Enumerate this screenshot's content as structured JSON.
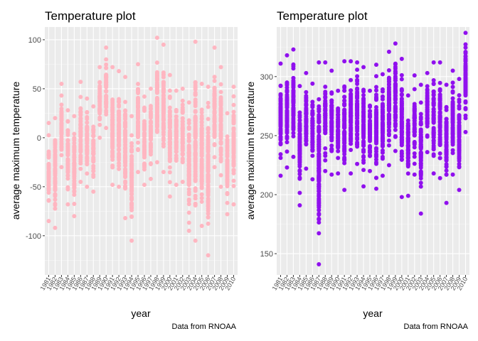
{
  "chart_data": [
    {
      "type": "scatter",
      "title": "Temperature plot",
      "xlabel": "year",
      "ylabel": "average maximum temperature",
      "caption": "Data from RNOAA",
      "color": "#FFB6C1",
      "panel_background": "#EBEBEB",
      "grid": true,
      "xlim": [
        1981,
        2010
      ],
      "ylim": [
        -140,
        113
      ],
      "yticks": [
        -100,
        -50,
        0,
        50,
        100
      ],
      "years": [
        1981,
        1982,
        1983,
        1984,
        1985,
        1986,
        1987,
        1988,
        1989,
        1990,
        1991,
        1992,
        1993,
        1994,
        1995,
        1996,
        1997,
        1998,
        1999,
        2000,
        2001,
        2002,
        2003,
        2004,
        2005,
        2006,
        2007,
        2008,
        2009,
        2010
      ],
      "ranges": [
        [
          -85,
          15
        ],
        [
          -92,
          20
        ],
        [
          -30,
          55
        ],
        [
          -68,
          28
        ],
        [
          -80,
          22
        ],
        [
          -45,
          57
        ],
        [
          -50,
          40
        ],
        [
          -55,
          32
        ],
        [
          0,
          72
        ],
        [
          10,
          92
        ],
        [
          -48,
          72
        ],
        [
          -50,
          68
        ],
        [
          -82,
          62
        ],
        [
          -105,
          22
        ],
        [
          -35,
          75
        ],
        [
          -48,
          42
        ],
        [
          -42,
          50
        ],
        [
          -25,
          102
        ],
        [
          -35,
          95
        ],
        [
          -60,
          64
        ],
        [
          -48,
          48
        ],
        [
          -45,
          50
        ],
        [
          -95,
          36
        ],
        [
          -105,
          98
        ],
        [
          -90,
          55
        ],
        [
          -120,
          52
        ],
        [
          -30,
          92
        ],
        [
          -50,
          72
        ],
        [
          -78,
          25
        ],
        [
          -68,
          52
        ]
      ]
    },
    {
      "type": "scatter",
      "title": "Temperature plot",
      "xlabel": "year",
      "ylabel": "average maximum temperature",
      "caption": "Data from RNOAA",
      "color": "#9010EE",
      "panel_background": "#EBEBEB",
      "grid": true,
      "xlim": [
        1981,
        2010
      ],
      "ylim": [
        132,
        342
      ],
      "yticks": [
        150,
        200,
        250,
        300
      ],
      "years": [
        1981,
        1982,
        1983,
        1984,
        1985,
        1986,
        1987,
        1988,
        1989,
        1990,
        1991,
        1992,
        1993,
        1994,
        1995,
        1996,
        1997,
        1998,
        1999,
        2000,
        2001,
        2002,
        2003,
        2004,
        2005,
        2006,
        2007,
        2008,
        2009,
        2010
      ],
      "ranges": [
        [
          216,
          311
        ],
        [
          223,
          318
        ],
        [
          232,
          323
        ],
        [
          191,
          292
        ],
        [
          222,
          303
        ],
        [
          213,
          294
        ],
        [
          141,
          312
        ],
        [
          220,
          312
        ],
        [
          217,
          305
        ],
        [
          218,
          288
        ],
        [
          204,
          313
        ],
        [
          218,
          313
        ],
        [
          226,
          312
        ],
        [
          207,
          308
        ],
        [
          220,
          288
        ],
        [
          205,
          310
        ],
        [
          216,
          302
        ],
        [
          225,
          321
        ],
        [
          237,
          328
        ],
        [
          198,
          315
        ],
        [
          199,
          284
        ],
        [
          217,
          301
        ],
        [
          184,
          293
        ],
        [
          236,
          303
        ],
        [
          218,
          312
        ],
        [
          214,
          312
        ],
        [
          193,
          293
        ],
        [
          217,
          305
        ],
        [
          204,
          298
        ],
        [
          253,
          337
        ]
      ]
    }
  ]
}
